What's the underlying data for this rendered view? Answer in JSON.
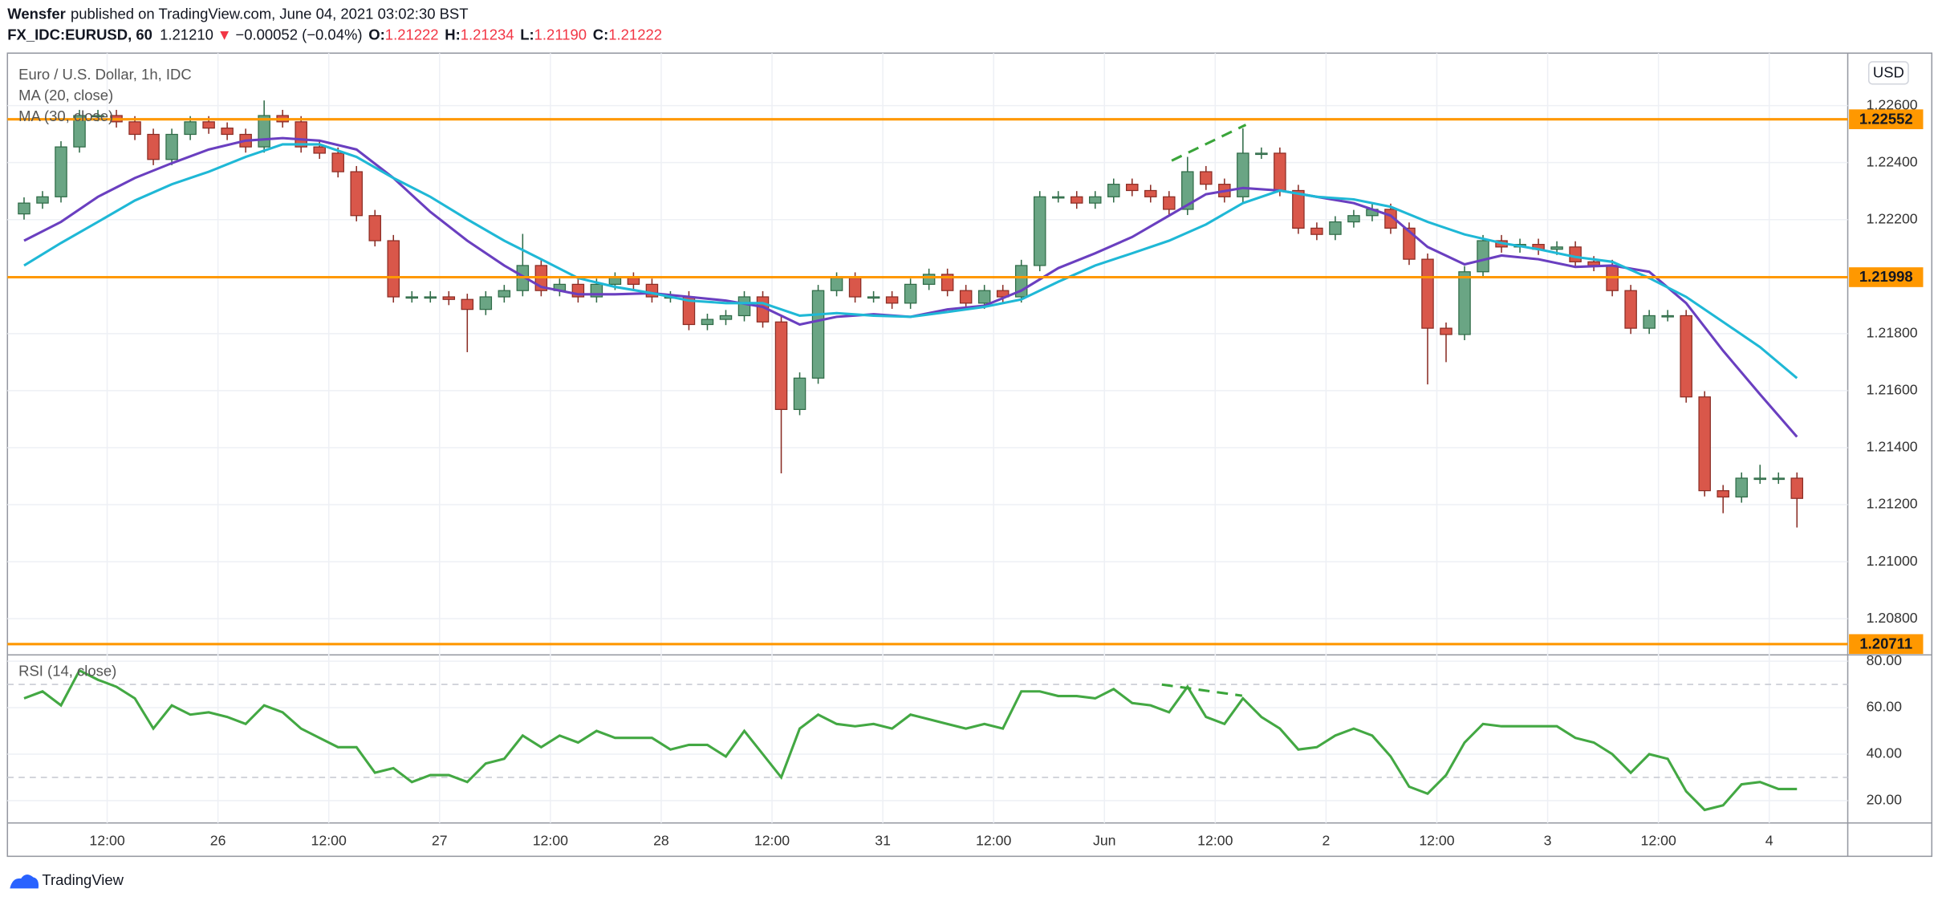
{
  "header": {
    "author": "Wensfer",
    "published": "published on TradingView.com, June 04, 2021 03:02:30 BST",
    "symbol": "FX_IDC:EURUSD, 60",
    "price": "1.21210",
    "arrow": "▼",
    "change": "−0.00052 (−0.04%)",
    "ohlc": [
      {
        "label": "O:",
        "value": "1.21222"
      },
      {
        "label": "H:",
        "value": "1.21234"
      },
      {
        "label": "L:",
        "value": "1.21190"
      },
      {
        "label": "C:",
        "value": "1.21222"
      }
    ]
  },
  "footer": {
    "brand": "TradingView"
  },
  "chart_data": [
    {
      "type": "candlestick",
      "title": "Euro / U.S. Dollar, 1h, IDC",
      "currency": "USD",
      "up_color": "#6aa584",
      "down_color": "#d9574a",
      "x": [
        3,
        5,
        7,
        9,
        11,
        13,
        15,
        17,
        19,
        21,
        23,
        25,
        27,
        29,
        31,
        33,
        35,
        37,
        39,
        41,
        43,
        45,
        47,
        49,
        51,
        53,
        55,
        57,
        59,
        61,
        63,
        65,
        67,
        69,
        71,
        73,
        75,
        77,
        79,
        81,
        83,
        85,
        87,
        89,
        91,
        93,
        95,
        97,
        99,
        101,
        103,
        105,
        107,
        109,
        111,
        113,
        115,
        117,
        119,
        121,
        123,
        125,
        127,
        129,
        131,
        133,
        135,
        137,
        139,
        141,
        143,
        145,
        147,
        149,
        151,
        153,
        155,
        157,
        159,
        161,
        163,
        165,
        167,
        169,
        171,
        173,
        175,
        177,
        179,
        181,
        183,
        185,
        187,
        189,
        191,
        193,
        195
      ],
      "open": [
        1.2222,
        1.22258,
        1.2228,
        1.22455,
        1.22565,
        1.22565,
        1.22543,
        1.22499,
        1.22411,
        1.22499,
        1.22543,
        1.22521,
        1.22499,
        1.22455,
        1.22565,
        1.22543,
        1.22455,
        1.22433,
        1.22368,
        1.22214,
        1.22126,
        1.21929,
        1.21929,
        1.21929,
        1.2192,
        1.21885,
        1.21929,
        1.21951,
        1.22039,
        1.21951,
        1.21973,
        1.21929,
        1.21973,
        1.21995,
        1.21973,
        1.21929,
        1.21929,
        1.21832,
        1.2185,
        1.21863,
        1.21929,
        1.21841,
        1.21534,
        1.21644,
        1.21951,
        1.21995,
        1.21929,
        1.21929,
        1.21907,
        1.21973,
        1.22008,
        1.21951,
        1.21907,
        1.21951,
        1.21929,
        1.22039,
        1.2228,
        1.2228,
        1.22258,
        1.2228,
        1.22324,
        1.22302,
        1.2228,
        1.22236,
        1.22368,
        1.22324,
        1.2228,
        1.22433,
        1.22433,
        1.22302,
        1.2217,
        1.22148,
        1.22192,
        1.22214,
        1.22236,
        1.2217,
        1.22061,
        1.21819,
        1.21797,
        1.22017,
        1.22126,
        1.22104,
        1.22113,
        1.22096,
        1.22104,
        1.22052,
        1.22039,
        1.21951,
        1.21819,
        1.21863,
        1.21863,
        1.21578,
        1.21249,
        1.21227,
        1.21293,
        1.21293,
        1.21293
      ],
      "high": [
        1.22278,
        1.223,
        1.22475,
        1.22585,
        1.22585,
        1.22585,
        1.22563,
        1.22519,
        1.22519,
        1.22563,
        1.22563,
        1.22541,
        1.22519,
        1.22618,
        1.22585,
        1.22563,
        1.22475,
        1.22453,
        1.22388,
        1.22234,
        1.22146,
        1.21949,
        1.21949,
        1.21949,
        1.2194,
        1.21949,
        1.21971,
        1.2215,
        1.22059,
        1.21993,
        1.21993,
        1.21993,
        1.22015,
        1.22015,
        1.21993,
        1.21949,
        1.21949,
        1.2187,
        1.21883,
        1.21949,
        1.21949,
        1.21861,
        1.21664,
        1.21971,
        1.22015,
        1.22015,
        1.21949,
        1.21949,
        1.21993,
        1.22028,
        1.22028,
        1.21971,
        1.21971,
        1.21971,
        1.22059,
        1.223,
        1.223,
        1.223,
        1.223,
        1.22344,
        1.22344,
        1.22322,
        1.223,
        1.2242,
        1.22388,
        1.22344,
        1.2252,
        1.22453,
        1.22453,
        1.22322,
        1.2219,
        1.22212,
        1.22234,
        1.22256,
        1.22256,
        1.2219,
        1.22081,
        1.21839,
        1.22037,
        1.22146,
        1.22146,
        1.22133,
        1.22133,
        1.22124,
        1.22124,
        1.22072,
        1.22059,
        1.21971,
        1.21883,
        1.21883,
        1.21883,
        1.21598,
        1.21269,
        1.21313,
        1.2134,
        1.21313,
        1.21313
      ],
      "low": [
        1.222,
        1.22238,
        1.2226,
        1.22435,
        1.22545,
        1.22523,
        1.22479,
        1.22391,
        1.22391,
        1.22479,
        1.22501,
        1.22479,
        1.22435,
        1.22435,
        1.22523,
        1.22435,
        1.22413,
        1.22348,
        1.22194,
        1.22106,
        1.21909,
        1.21909,
        1.21909,
        1.219,
        1.21735,
        1.21865,
        1.21909,
        1.21931,
        1.21931,
        1.21931,
        1.21909,
        1.21909,
        1.21953,
        1.21953,
        1.21909,
        1.21909,
        1.21812,
        1.21812,
        1.2183,
        1.21843,
        1.21821,
        1.2131,
        1.21514,
        1.21624,
        1.21931,
        1.21909,
        1.21909,
        1.21887,
        1.21887,
        1.21953,
        1.21931,
        1.21887,
        1.21887,
        1.21909,
        1.21909,
        1.22019,
        1.2226,
        1.22238,
        1.22238,
        1.2226,
        1.22282,
        1.2226,
        1.22216,
        1.22216,
        1.22304,
        1.2226,
        1.2226,
        1.22413,
        1.22282,
        1.2215,
        1.22128,
        1.22128,
        1.22172,
        1.22194,
        1.2215,
        1.22041,
        1.21622,
        1.217,
        1.21777,
        1.21997,
        1.22084,
        1.22084,
        1.22076,
        1.22076,
        1.22032,
        1.22019,
        1.21931,
        1.21799,
        1.21799,
        1.21843,
        1.21558,
        1.21229,
        1.2117,
        1.21207,
        1.21273,
        1.21273,
        1.2112
      ],
      "close": [
        1.22258,
        1.2228,
        1.22455,
        1.22565,
        1.22565,
        1.22543,
        1.22499,
        1.22411,
        1.22499,
        1.22543,
        1.22521,
        1.22499,
        1.22455,
        1.22565,
        1.22543,
        1.22455,
        1.22433,
        1.22368,
        1.22214,
        1.22126,
        1.21929,
        1.21929,
        1.21929,
        1.2192,
        1.21885,
        1.21929,
        1.21951,
        1.22039,
        1.21951,
        1.21973,
        1.21929,
        1.21973,
        1.21995,
        1.21973,
        1.21929,
        1.21929,
        1.21832,
        1.2185,
        1.21863,
        1.21929,
        1.21841,
        1.21534,
        1.21644,
        1.21951,
        1.21995,
        1.21929,
        1.21929,
        1.21907,
        1.21973,
        1.22008,
        1.21951,
        1.21907,
        1.21951,
        1.21929,
        1.22039,
        1.2228,
        1.2228,
        1.22258,
        1.2228,
        1.22324,
        1.22302,
        1.2228,
        1.22236,
        1.22368,
        1.22324,
        1.2228,
        1.22433,
        1.22433,
        1.22302,
        1.2217,
        1.22148,
        1.22192,
        1.22214,
        1.22236,
        1.2217,
        1.22061,
        1.21819,
        1.21797,
        1.22017,
        1.22126,
        1.22104,
        1.22113,
        1.22096,
        1.22104,
        1.22052,
        1.22039,
        1.21951,
        1.21819,
        1.21863,
        1.21863,
        1.21578,
        1.21249,
        1.21227,
        1.21293,
        1.21293,
        1.21293,
        1.21222
      ],
      "series": [
        {
          "name": "MA (20, close)",
          "color": "#6a3fc0",
          "x": [
            3,
            7,
            11,
            15,
            19,
            23,
            27,
            31,
            35,
            39,
            43,
            47,
            51,
            55,
            59,
            63,
            67,
            71,
            75,
            79,
            83,
            87,
            91,
            95,
            99,
            103,
            107,
            111,
            115,
            119,
            123,
            127,
            131,
            135,
            139,
            143,
            147,
            151,
            155,
            159,
            163,
            167,
            171,
            175,
            179,
            183,
            187,
            191,
            195
          ],
          "values": [
            1.22126,
            1.22192,
            1.2228,
            1.22346,
            1.22398,
            1.22446,
            1.22477,
            1.22486,
            1.22477,
            1.22446,
            1.22346,
            1.22227,
            1.22126,
            1.22039,
            1.21964,
            1.21938,
            1.21938,
            1.21942,
            1.21929,
            1.21916,
            1.21894,
            1.21832,
            1.21859,
            1.21868,
            1.21859,
            1.21885,
            1.21898,
            1.21951,
            1.2203,
            1.22082,
            1.22139,
            1.22214,
            1.22289,
            1.22311,
            1.22302,
            1.2228,
            1.22258,
            1.22214,
            1.22104,
            1.22043,
            1.22074,
            1.22061,
            1.22034,
            1.22039,
            1.22017,
            1.21907,
            1.2174,
            1.21587,
            1.21438
          ]
        },
        {
          "name": "MA (30, close)",
          "color": "#1fb8d6",
          "x": [
            3,
            7,
            11,
            15,
            19,
            23,
            27,
            31,
            35,
            39,
            43,
            47,
            51,
            55,
            59,
            63,
            67,
            71,
            75,
            79,
            83,
            87,
            91,
            95,
            99,
            103,
            107,
            111,
            115,
            119,
            123,
            127,
            131,
            135,
            139,
            143,
            147,
            151,
            155,
            159,
            163,
            167,
            171,
            175,
            179,
            183,
            187,
            191,
            195
          ],
          "values": [
            1.22039,
            1.22118,
            1.22192,
            1.22267,
            1.22324,
            1.22368,
            1.2242,
            1.22464,
            1.22464,
            1.2242,
            1.22346,
            1.2228,
            1.22201,
            1.22126,
            1.22061,
            1.21995,
            1.21964,
            1.21942,
            1.21916,
            1.21907,
            1.21907,
            1.21863,
            1.21872,
            1.21863,
            1.21859,
            1.21876,
            1.21894,
            1.2192,
            1.21982,
            1.22039,
            1.22082,
            1.22126,
            1.22183,
            1.22258,
            1.22302,
            1.2228,
            1.22271,
            1.22245,
            1.22192,
            1.22148,
            1.22118,
            1.22096,
            1.22069,
            1.22052,
            1.21995,
            1.21929,
            1.21841,
            1.21753,
            1.21644
          ]
        }
      ],
      "hlines": [
        {
          "value": 1.22552,
          "label": "1.22552"
        },
        {
          "value": 1.21998,
          "label": "1.21998"
        },
        {
          "value": 1.20711,
          "label": "1.20711"
        }
      ],
      "hline_color": "#ff9800",
      "ylim": [
        1.20673,
        1.22784
      ],
      "yticks": [
        {
          "value": 1.208,
          "label": "1.20800"
        },
        {
          "value": 1.21,
          "label": "1.21000"
        },
        {
          "value": 1.212,
          "label": "1.21200"
        },
        {
          "value": 1.214,
          "label": "1.21400"
        },
        {
          "value": 1.216,
          "label": "1.21600"
        },
        {
          "value": 1.218,
          "label": "1.21800"
        },
        {
          "value": 1.222,
          "label": "1.22200"
        },
        {
          "value": 1.224,
          "label": "1.22400"
        },
        {
          "value": 1.226,
          "label": "1.22600"
        }
      ],
      "xlim": [
        1.2,
        200.5
      ],
      "xticks": [
        {
          "value": 12,
          "label": "12:00"
        },
        {
          "value": 24,
          "label": "26"
        },
        {
          "value": 36,
          "label": "12:00"
        },
        {
          "value": 48,
          "label": "27"
        },
        {
          "value": 60,
          "label": "12:00"
        },
        {
          "value": 72,
          "label": "28"
        },
        {
          "value": 84,
          "label": "12:00"
        },
        {
          "value": 96,
          "label": "31"
        },
        {
          "value": 108,
          "label": "12:00"
        },
        {
          "value": 120,
          "label": "Jun"
        },
        {
          "value": 132,
          "label": "12:00"
        },
        {
          "value": 144,
          "label": "2"
        },
        {
          "value": 156,
          "label": "12:00"
        },
        {
          "value": 168,
          "label": "3"
        },
        {
          "value": 180,
          "label": "12:00"
        },
        {
          "value": 192,
          "label": "4"
        }
      ],
      "grid": true
    },
    {
      "type": "line",
      "title": "RSI (14, close)",
      "color": "#43a843",
      "x": [
        3,
        5,
        7,
        9,
        11,
        13,
        15,
        17,
        19,
        21,
        23,
        25,
        27,
        29,
        31,
        33,
        35,
        37,
        39,
        41,
        43,
        45,
        47,
        49,
        51,
        53,
        55,
        57,
        59,
        61,
        63,
        65,
        67,
        69,
        71,
        73,
        75,
        77,
        79,
        81,
        83,
        85,
        87,
        89,
        91,
        93,
        95,
        97,
        99,
        101,
        103,
        105,
        107,
        109,
        111,
        113,
        115,
        117,
        119,
        121,
        123,
        125,
        127,
        129,
        131,
        133,
        135,
        137,
        139,
        141,
        143,
        145,
        147,
        149,
        151,
        153,
        155,
        157,
        159,
        161,
        163,
        165,
        167,
        169,
        171,
        173,
        175,
        177,
        179,
        181,
        183,
        185,
        187,
        189,
        191,
        193,
        195
      ],
      "values": [
        64,
        67,
        61,
        76,
        72,
        69,
        64,
        51,
        61,
        57,
        58,
        56,
        53,
        61,
        58,
        51,
        47,
        43,
        43,
        32,
        34,
        28,
        31,
        31,
        28,
        36,
        38,
        48,
        43,
        48,
        45,
        50,
        47,
        47,
        47,
        42,
        44,
        44,
        39,
        50,
        40,
        30,
        51,
        57,
        53,
        52,
        53,
        51,
        57,
        55,
        53,
        51,
        53,
        51,
        67,
        67,
        65,
        65,
        64,
        68,
        62,
        61,
        58,
        69,
        56,
        53,
        64,
        56,
        51,
        42,
        43,
        48,
        51,
        48,
        39,
        26,
        23,
        31,
        45,
        53,
        52,
        52,
        52,
        52,
        47,
        45,
        40,
        32,
        40,
        38,
        24,
        16,
        18,
        27,
        28,
        25,
        25
      ],
      "levels": [
        30,
        70
      ],
      "ylim": [
        10.4,
        82.7
      ],
      "yticks": [
        {
          "value": 20,
          "label": "20.00"
        },
        {
          "value": 40,
          "label": "40.00"
        },
        {
          "value": 60,
          "label": "60.00"
        },
        {
          "value": 80,
          "label": "80.00"
        }
      ],
      "grid": true
    }
  ]
}
